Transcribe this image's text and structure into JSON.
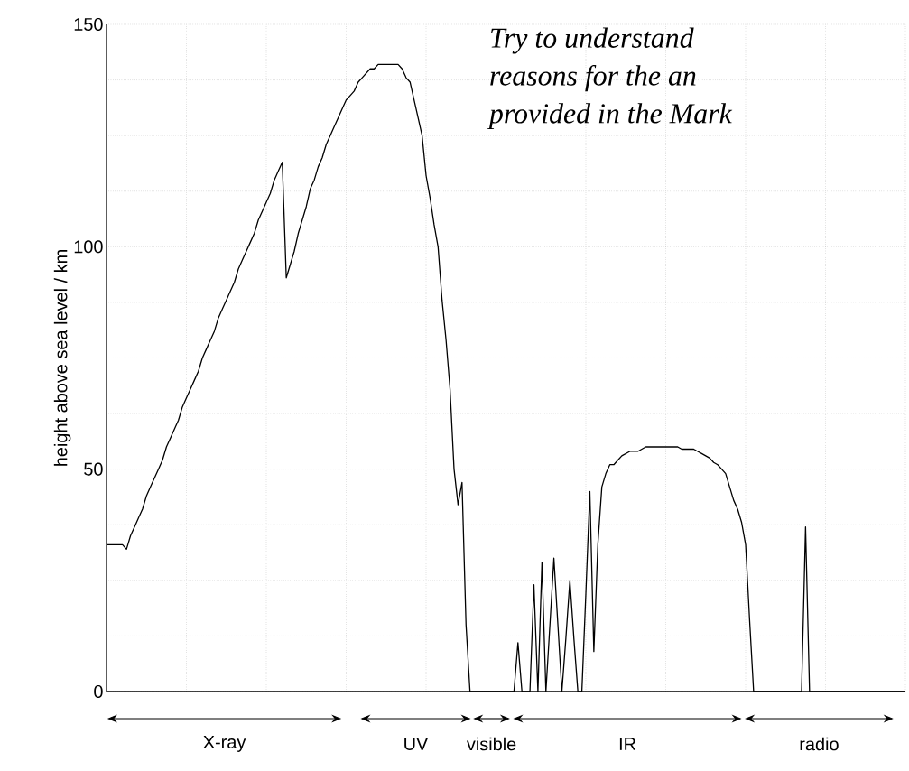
{
  "chart_data": {
    "type": "line",
    "ylabel": "height above sea level / km",
    "annotations": [
      "Try to understand",
      "reasons for the an",
      "provided in the Mark",
      "X-ray",
      "UV",
      "visible",
      "IR",
      "radio"
    ],
    "categories": [
      null,
      null,
      null,
      null,
      null,
      null,
      null,
      null,
      null,
      null,
      null,
      null,
      null,
      null,
      null,
      null,
      null,
      null,
      null,
      null,
      null,
      null,
      null,
      null,
      null,
      null,
      null,
      null,
      null,
      null,
      null,
      null,
      null,
      null,
      null,
      null,
      null,
      null,
      null,
      null,
      null,
      null,
      null,
      null,
      null,
      null,
      null,
      null,
      null,
      null,
      null,
      null,
      null,
      null,
      null,
      null,
      null,
      null,
      null,
      null,
      null,
      null,
      null,
      null,
      null,
      null,
      null,
      null,
      null,
      null,
      null,
      null,
      null,
      null,
      null,
      null,
      null,
      null,
      null,
      null,
      null,
      null,
      null,
      null,
      null,
      null,
      null,
      null,
      null,
      null,
      null,
      null,
      null,
      null,
      null,
      null,
      null,
      null,
      null,
      null,
      null,
      null,
      null,
      null,
      null,
      null,
      null,
      null,
      null,
      null,
      null,
      null,
      null,
      null,
      null,
      null,
      null,
      null,
      null,
      null,
      null,
      null,
      null,
      null,
      null,
      null,
      null,
      null,
      null,
      null,
      null,
      null,
      null,
      null,
      null,
      null,
      null,
      null,
      null,
      null,
      null,
      null,
      null,
      null,
      null,
      null,
      null,
      null,
      null,
      null,
      null,
      null,
      null,
      null,
      null,
      null,
      null,
      null,
      null,
      null,
      null,
      null,
      null,
      null,
      null,
      null,
      null,
      null,
      null,
      null,
      null,
      null,
      null,
      null,
      null,
      null,
      null,
      null,
      null,
      null,
      null,
      null,
      null,
      null,
      null,
      null,
      null,
      null,
      null,
      null,
      null,
      null,
      null,
      null,
      null,
      null,
      null,
      null,
      null,
      null,
      null
    ],
    "values": [
      33,
      33,
      33,
      33,
      33,
      32,
      35,
      37,
      39,
      41,
      44,
      46,
      48,
      50,
      52,
      55,
      57,
      59,
      61,
      64,
      66,
      68,
      70,
      72,
      75,
      77,
      79,
      81,
      84,
      86,
      88,
      90,
      92,
      95,
      97,
      99,
      101,
      103,
      106,
      108,
      110,
      112,
      115,
      117,
      119,
      93,
      96,
      99,
      103,
      106,
      109,
      113,
      115,
      118,
      120,
      123,
      125,
      127,
      129,
      131,
      133,
      134,
      135,
      137,
      138,
      139,
      140,
      140,
      141,
      141,
      141,
      141,
      141,
      141,
      140,
      138,
      137,
      133,
      129,
      125,
      116,
      111,
      105,
      100,
      88,
      79,
      68,
      50,
      42,
      47,
      15,
      0,
      0,
      0,
      0,
      0,
      0,
      0,
      0,
      0,
      0,
      0,
      0,
      11,
      0,
      0,
      0,
      24,
      0,
      29,
      0,
      15,
      30,
      15,
      0,
      12,
      25,
      12,
      0,
      0,
      22,
      45,
      9,
      33,
      46,
      49,
      51,
      51,
      52,
      53,
      53.5,
      54,
      54,
      54,
      54.5,
      55,
      55,
      55,
      55,
      55,
      55,
      55,
      55,
      55,
      54.5,
      54.5,
      54.5,
      54.5,
      54,
      53.5,
      53,
      52.5,
      51.5,
      51,
      50,
      49,
      46,
      43,
      41,
      38,
      33,
      16,
      0,
      0,
      0,
      0,
      0,
      0,
      0,
      0,
      0,
      0,
      0,
      0,
      0,
      37,
      0,
      0,
      0,
      0,
      0,
      0,
      0,
      0,
      0,
      0,
      0,
      0,
      0,
      0,
      0,
      0,
      0,
      0,
      0,
      0,
      0,
      0,
      0,
      0,
      0
    ],
    "color": "#000000",
    "ylim": [
      0,
      150
    ],
    "yticks": [
      0,
      {
        "value": 12.5,
        "label": null
      },
      {
        "value": 25,
        "label": null
      },
      {
        "value": 37.5,
        "label": null
      },
      50,
      {
        "value": 62.5,
        "label": null
      },
      {
        "value": 75,
        "label": null
      },
      {
        "value": 87.5,
        "label": null
      },
      100,
      {
        "value": 112.5,
        "label": null
      },
      {
        "value": 125,
        "label": null
      },
      {
        "value": 137.5,
        "label": null
      },
      150
    ],
    "grid": true,
    "tick_labels": "y",
    "marker": "none",
    "line_style": "solid"
  }
}
